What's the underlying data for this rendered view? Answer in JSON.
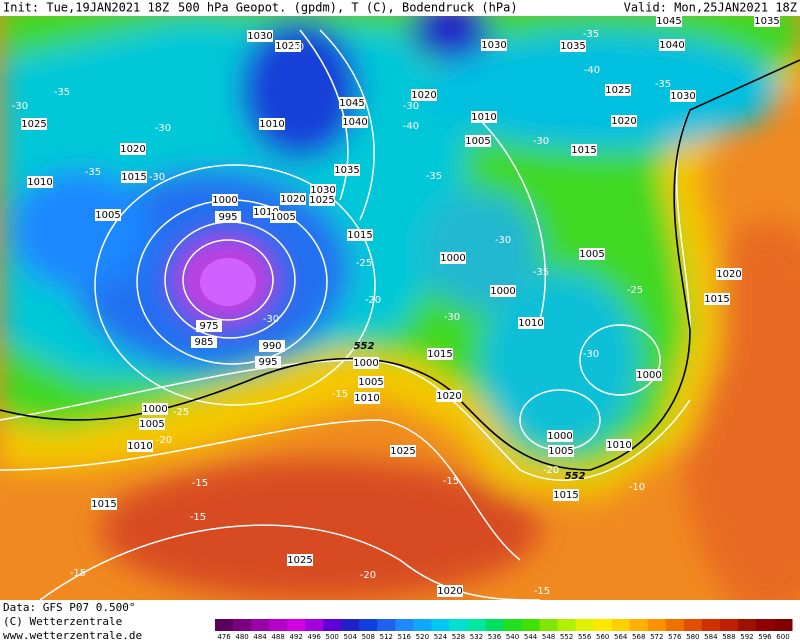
{
  "header": {
    "init": "Init: Tue,19JAN2021 18Z",
    "title": "500 hPa Geopot. (gpdm), T (C), Bodendruck (hPa)",
    "valid": "Valid: Mon,25JAN2021 18Z"
  },
  "footer": {
    "data": "Data: GFS P07 0.500°",
    "copyright": "(C) Wetterzentrale",
    "url": "www.wetterzentrale.de"
  },
  "colorbar": {
    "values": [
      476,
      480,
      484,
      488,
      492,
      496,
      500,
      504,
      508,
      512,
      516,
      520,
      524,
      528,
      532,
      536,
      540,
      544,
      548,
      552,
      556,
      560,
      564,
      568,
      572,
      576,
      580,
      584,
      588,
      592,
      596,
      600
    ],
    "colors": [
      "#5a005a",
      "#7a0080",
      "#9a00a8",
      "#b400c8",
      "#d000e0",
      "#a000e0",
      "#6000d8",
      "#2020c8",
      "#1040e0",
      "#2060f0",
      "#1e88ff",
      "#10a8ff",
      "#00c8f0",
      "#00e0d0",
      "#00e8a0",
      "#00e060",
      "#20e020",
      "#40e000",
      "#80e800",
      "#b0f000",
      "#e0f000",
      "#ffe800",
      "#ffd000",
      "#ffb000",
      "#ff9000",
      "#f07000",
      "#e05000",
      "#d03000",
      "#c02000",
      "#a01000",
      "#900000",
      "#800000"
    ]
  },
  "isobar_labels": [
    1030,
    1025,
    1045,
    1040,
    1010,
    1035,
    1030,
    1025,
    1020,
    1010,
    1005,
    1000,
    995,
    1015,
    1000,
    1000,
    1010,
    1005,
    1015,
    990,
    995,
    985,
    975,
    1000,
    1005,
    1010,
    1020,
    1025,
    1000,
    1005,
    1010,
    1015,
    1000,
    1020,
    1015,
    1030,
    1035,
    1040,
    1045,
    1035,
    1025,
    1030,
    1020,
    1010,
    1005,
    1015,
    1020,
    1025,
    1020,
    1015,
    1010,
    1005,
    1000,
    1005,
    1010,
    1015,
    1025,
    1020
  ],
  "temperature_labels": [
    -35,
    -30,
    -35,
    -30,
    -30,
    -30,
    -35,
    -40,
    -35,
    -30,
    -40,
    -35,
    -30,
    -35,
    -30,
    -25,
    -20,
    -30,
    -30,
    -25,
    -30,
    -25,
    -20,
    -15,
    -15,
    -15,
    -15,
    -20,
    -20,
    -10,
    -15,
    -15
  ],
  "height_labels": [
    552,
    552
  ]
}
